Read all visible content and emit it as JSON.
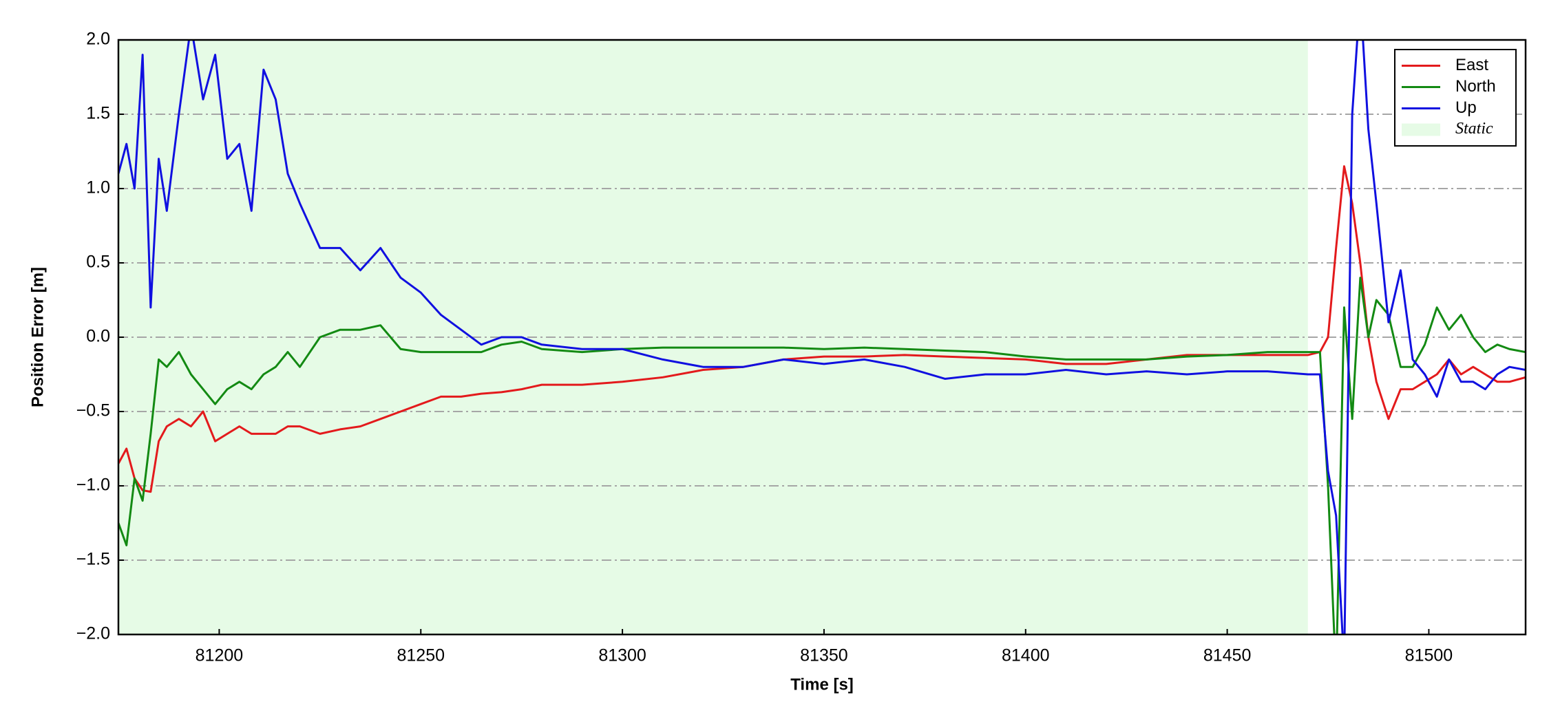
{
  "chart_data": {
    "type": "line",
    "xlabel": "Time [s]",
    "ylabel": "Position Error [m]",
    "xlim": [
      81175,
      81524
    ],
    "ylim": [
      -2.0,
      2.0
    ],
    "xticks": [
      81200,
      81250,
      81300,
      81350,
      81400,
      81450,
      81500
    ],
    "yticks": [
      {
        "value": -2.0,
        "label": "−2.0"
      },
      {
        "value": -1.5,
        "label": "−1.5"
      },
      {
        "value": -1.0,
        "label": "−1.0"
      },
      {
        "value": -0.5,
        "label": "−0.5"
      },
      {
        "value": 0.0,
        "label": "0.0"
      },
      {
        "value": 0.5,
        "label": "0.5"
      },
      {
        "value": 1.0,
        "label": "1.0"
      },
      {
        "value": 1.5,
        "label": "1.5"
      },
      {
        "value": 2.0,
        "label": "2.0"
      }
    ],
    "grid": true,
    "legend": "upper right",
    "shaded_regions": [
      {
        "name": "Static",
        "color": "#e6fbe6",
        "x": [
          81175,
          81470
        ]
      }
    ],
    "x": [
      81175,
      81177,
      81179,
      81181,
      81183,
      81185,
      81187,
      81190,
      81193,
      81196,
      81199,
      81202,
      81205,
      81208,
      81211,
      81214,
      81217,
      81220,
      81225,
      81230,
      81235,
      81240,
      81245,
      81250,
      81255,
      81260,
      81265,
      81270,
      81275,
      81280,
      81290,
      81300,
      81310,
      81320,
      81330,
      81340,
      81350,
      81360,
      81370,
      81380,
      81390,
      81400,
      81410,
      81420,
      81430,
      81440,
      81450,
      81460,
      81470,
      81473,
      81475,
      81477,
      81479,
      81481,
      81483,
      81485,
      81487,
      81490,
      81493,
      81496,
      81499,
      81502,
      81505,
      81508,
      81511,
      81514,
      81517,
      81520,
      81524
    ],
    "series": [
      {
        "name": "East",
        "color": "#e31a1c",
        "values": [
          -0.85,
          -0.75,
          -0.95,
          -1.03,
          -1.04,
          -0.7,
          -0.6,
          -0.55,
          -0.6,
          -0.5,
          -0.7,
          -0.65,
          -0.6,
          -0.65,
          -0.65,
          -0.65,
          -0.6,
          -0.6,
          -0.65,
          -0.62,
          -0.6,
          -0.55,
          -0.5,
          -0.45,
          -0.4,
          -0.4,
          -0.38,
          -0.37,
          -0.35,
          -0.32,
          -0.32,
          -0.3,
          -0.27,
          -0.22,
          -0.2,
          -0.15,
          -0.13,
          -0.13,
          -0.12,
          -0.13,
          -0.14,
          -0.15,
          -0.18,
          -0.18,
          -0.15,
          -0.12,
          -0.12,
          -0.12,
          -0.12,
          -0.1,
          0.0,
          0.6,
          1.15,
          0.9,
          0.5,
          0.0,
          -0.3,
          -0.55,
          -0.35,
          -0.35,
          -0.3,
          -0.25,
          -0.15,
          -0.25,
          -0.2,
          -0.25,
          -0.3,
          -0.3,
          -0.27
        ]
      },
      {
        "name": "North",
        "color": "#138a13",
        "values": [
          -1.25,
          -1.4,
          -0.95,
          -1.1,
          -0.65,
          -0.15,
          -0.2,
          -0.1,
          -0.25,
          -0.35,
          -0.45,
          -0.35,
          -0.3,
          -0.35,
          -0.25,
          -0.2,
          -0.1,
          -0.2,
          0.0,
          0.05,
          0.05,
          0.08,
          -0.08,
          -0.1,
          -0.1,
          -0.1,
          -0.1,
          -0.05,
          -0.03,
          -0.08,
          -0.1,
          -0.08,
          -0.07,
          -0.07,
          -0.07,
          -0.07,
          -0.08,
          -0.07,
          -0.08,
          -0.09,
          -0.1,
          -0.13,
          -0.15,
          -0.15,
          -0.15,
          -0.13,
          -0.12,
          -0.1,
          -0.1,
          -0.1,
          -1.0,
          -2.3,
          0.2,
          -0.55,
          0.4,
          0.0,
          0.25,
          0.15,
          -0.2,
          -0.2,
          -0.05,
          0.2,
          0.05,
          0.15,
          0.0,
          -0.1,
          -0.05,
          -0.08,
          -0.1
        ]
      },
      {
        "name": "Up",
        "color": "#1010e0",
        "values": [
          1.1,
          1.3,
          1.0,
          1.9,
          0.2,
          1.2,
          0.85,
          1.5,
          2.1,
          1.6,
          1.9,
          1.2,
          1.3,
          0.85,
          1.8,
          1.6,
          1.1,
          0.9,
          0.6,
          0.6,
          0.45,
          0.6,
          0.4,
          0.3,
          0.15,
          0.05,
          -0.05,
          0.0,
          0.0,
          -0.05,
          -0.08,
          -0.08,
          -0.15,
          -0.2,
          -0.2,
          -0.15,
          -0.18,
          -0.15,
          -0.2,
          -0.28,
          -0.25,
          -0.25,
          -0.22,
          -0.25,
          -0.23,
          -0.25,
          -0.23,
          -0.23,
          -0.25,
          -0.25,
          -0.9,
          -1.2,
          -2.2,
          1.5,
          2.3,
          1.4,
          0.9,
          0.1,
          0.45,
          -0.15,
          -0.25,
          -0.4,
          -0.15,
          -0.3,
          -0.3,
          -0.35,
          -0.25,
          -0.2,
          -0.22
        ]
      }
    ]
  }
}
